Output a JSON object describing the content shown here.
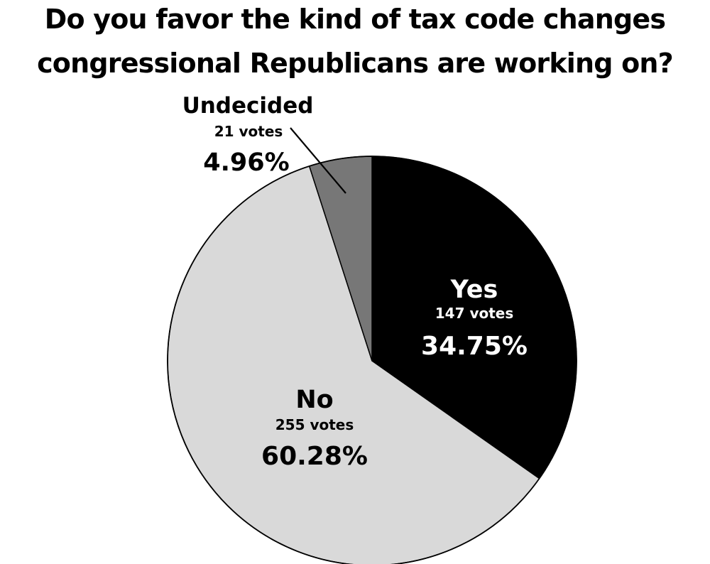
{
  "chart_data": {
    "type": "pie",
    "title_lines": [
      "Do you favor the kind of tax code changes",
      "congressional Republicans are working on?"
    ],
    "slices": [
      {
        "label": "Yes",
        "votes_text": "147 votes",
        "percent_text": "34.75%",
        "value": 34.75,
        "votes": 147,
        "color": "#000000",
        "text_color": "#ffffff"
      },
      {
        "label": "No",
        "votes_text": "255 votes",
        "percent_text": "60.28%",
        "value": 60.28,
        "votes": 255,
        "color": "#d9d9d9",
        "text_color": "#000000"
      },
      {
        "label": "Undecided",
        "votes_text": "21 votes",
        "percent_text": "4.96%",
        "value": 4.96,
        "votes": 21,
        "color": "#777777",
        "text_color": "#000000"
      }
    ],
    "start_angle_deg": 0,
    "direction": "clockwise",
    "outline_color": "#000000"
  }
}
